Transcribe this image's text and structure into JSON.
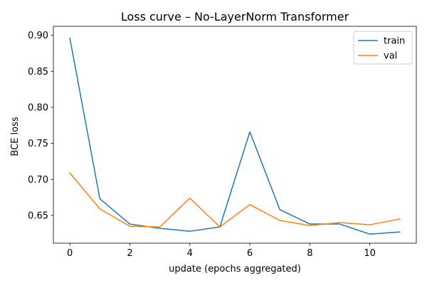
{
  "chart_data": {
    "type": "line",
    "title": "Loss curve – No-LayerNorm Transformer",
    "xlabel": "update (epochs aggregated)",
    "ylabel": "BCE loss",
    "x": [
      0,
      1,
      2,
      3,
      4,
      5,
      6,
      7,
      8,
      9,
      10,
      11
    ],
    "xlim": [
      -0.55,
      11.55
    ],
    "ylim": [
      0.6114,
      0.9125
    ],
    "xticks": [
      0,
      2,
      4,
      6,
      8,
      10
    ],
    "yticks": [
      0.65,
      0.7,
      0.75,
      0.8,
      0.85,
      0.9
    ],
    "xtick_labels": [
      "0",
      "2",
      "4",
      "6",
      "8",
      "10"
    ],
    "ytick_labels": [
      "0.65",
      "0.70",
      "0.75",
      "0.80",
      "0.85",
      "0.90"
    ],
    "grid": false,
    "legend_position": "top-right",
    "series": [
      {
        "name": "train",
        "color": "#1f77b4",
        "values": [
          0.896,
          0.673,
          0.638,
          0.632,
          0.628,
          0.634,
          0.766,
          0.658,
          0.638,
          0.638,
          0.624,
          0.627
        ]
      },
      {
        "name": "val",
        "color": "#ff7f0e",
        "values": [
          0.709,
          0.659,
          0.635,
          0.634,
          0.674,
          0.634,
          0.665,
          0.643,
          0.636,
          0.64,
          0.637,
          0.645
        ]
      }
    ]
  }
}
